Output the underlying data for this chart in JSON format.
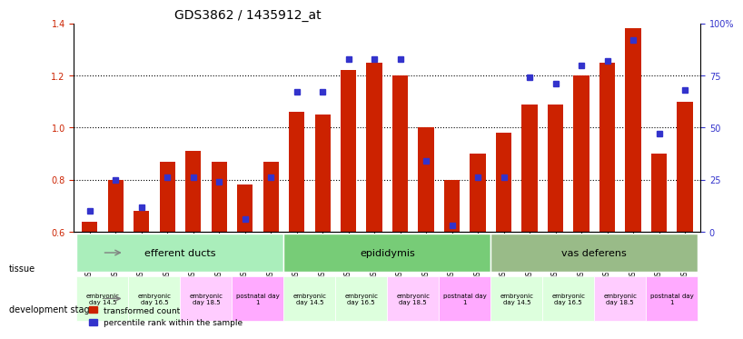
{
  "title": "GDS3862 / 1435912_at",
  "samples": [
    "GSM560923",
    "GSM560924",
    "GSM560925",
    "GSM560926",
    "GSM560927",
    "GSM560928",
    "GSM560929",
    "GSM560930",
    "GSM560931",
    "GSM560932",
    "GSM560933",
    "GSM560934",
    "GSM560935",
    "GSM560936",
    "GSM560937",
    "GSM560938",
    "GSM560939",
    "GSM560940",
    "GSM560941",
    "GSM560942",
    "GSM560943",
    "GSM560944",
    "GSM560945",
    "GSM560946"
  ],
  "red_values": [
    0.64,
    0.8,
    0.68,
    0.87,
    0.91,
    0.87,
    0.78,
    0.87,
    1.06,
    1.05,
    1.22,
    1.25,
    1.2,
    1.0,
    0.8,
    0.9,
    0.98,
    1.09,
    1.09,
    1.2,
    1.25,
    1.38,
    0.9,
    1.1
  ],
  "blue_values_pct": [
    10,
    25,
    12,
    26,
    26,
    24,
    6,
    26,
    67,
    67,
    83,
    83,
    83,
    34,
    3,
    26,
    26,
    74,
    71,
    80,
    82,
    92,
    47,
    68
  ],
  "ylim_left": [
    0.6,
    1.4
  ],
  "ylim_right": [
    0,
    100
  ],
  "left_yticks": [
    0.6,
    0.8,
    1.0,
    1.2,
    1.4
  ],
  "right_yticks": [
    0,
    25,
    50,
    75,
    100
  ],
  "right_ytick_labels": [
    "0",
    "25",
    "50",
    "75",
    "100%"
  ],
  "bar_color": "#cc2200",
  "dot_color": "#3333cc",
  "tissues": [
    {
      "name": "efferent ducts",
      "start": 0,
      "end": 7,
      "color": "#99ee99"
    },
    {
      "name": "epididymis",
      "start": 8,
      "end": 15,
      "color": "#88dd88"
    },
    {
      "name": "vas deferens",
      "start": 16,
      "end": 23,
      "color": "#99dd99"
    }
  ],
  "dev_stages": [
    {
      "label": "embryonic\nday 14.5",
      "start": 0,
      "end": 1,
      "color": "#ddffdd"
    },
    {
      "label": "embryonic\nday 16.5",
      "start": 2,
      "end": 3,
      "color": "#ddffdd"
    },
    {
      "label": "embryonic\nday 18.5",
      "start": 4,
      "end": 5,
      "color": "#ffccff"
    },
    {
      "label": "postnatal day\n1",
      "start": 6,
      "end": 7,
      "color": "#ffaaff"
    },
    {
      "label": "embryonic\nday 14.5",
      "start": 8,
      "end": 9,
      "color": "#ddffdd"
    },
    {
      "label": "embryonic\nday 16.5",
      "start": 10,
      "end": 11,
      "color": "#ddffdd"
    },
    {
      "label": "embryonic\nday 18.5",
      "start": 12,
      "end": 13,
      "color": "#ffccff"
    },
    {
      "label": "postnatal day\n1",
      "start": 14,
      "end": 15,
      "color": "#ffaaff"
    },
    {
      "label": "embryonic\nday 14.5",
      "start": 16,
      "end": 17,
      "color": "#ddffdd"
    },
    {
      "label": "embryonic\nday 16.5",
      "start": 18,
      "end": 19,
      "color": "#ddffdd"
    },
    {
      "label": "embryonic\nday 18.5",
      "start": 20,
      "end": 21,
      "color": "#ffccff"
    },
    {
      "label": "postnatal day\n1",
      "start": 22,
      "end": 23,
      "color": "#ffaaff"
    }
  ],
  "legend_items": [
    {
      "label": "transformed count",
      "color": "#cc2200",
      "marker": "s"
    },
    {
      "label": "percentile rank within the sample",
      "color": "#3333cc",
      "marker": "s"
    }
  ]
}
